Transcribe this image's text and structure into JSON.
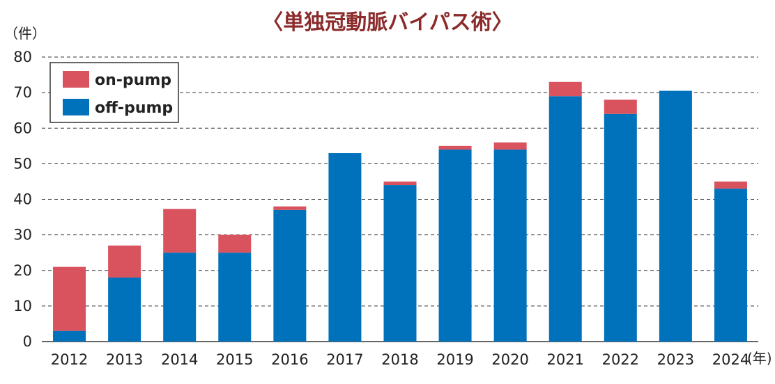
{
  "colors": {
    "on_pump": "#D9535F",
    "off_pump": "#0072BC",
    "title": "#8B2B2B"
  },
  "chart_data": {
    "type": "bar",
    "stacked": true,
    "title": "〈単独冠動脈バイパス術〉",
    "ylabel": "（件）",
    "xlabel": "(年)",
    "ylim": [
      0,
      80
    ],
    "yticks": [
      0,
      10,
      20,
      30,
      40,
      50,
      60,
      70,
      80
    ],
    "grid": true,
    "legend_position": "top-left",
    "categories": [
      "2012",
      "2013",
      "2014",
      "2015",
      "2016",
      "2017",
      "2018",
      "2019",
      "2020",
      "2021",
      "2022",
      "2023",
      "2024"
    ],
    "series": [
      {
        "name": "off-pump",
        "color": "#0072BC",
        "values": [
          3,
          18,
          25,
          25,
          37,
          53,
          44,
          54,
          54,
          69,
          64,
          70.5,
          43
        ]
      },
      {
        "name": "on-pump",
        "color": "#D9535F",
        "values": [
          18,
          9,
          12.3,
          5,
          1,
          0,
          1,
          1,
          2,
          4,
          4,
          0,
          2
        ]
      }
    ]
  }
}
